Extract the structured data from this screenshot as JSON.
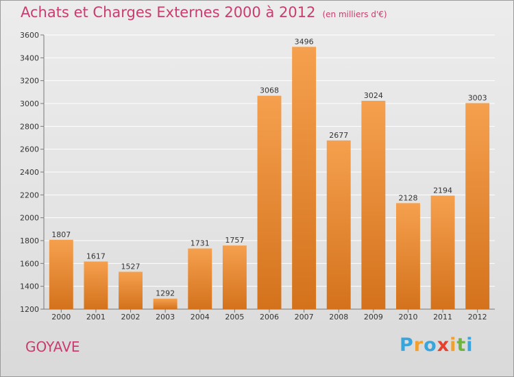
{
  "header": {
    "title": "Achats et Charges Externes 2000 à 2012",
    "subtitle": "(en milliers d'€)"
  },
  "footer": {
    "place": "GOYAVE",
    "logo_letters": [
      "P",
      "r",
      "o",
      "x",
      "i",
      "t",
      "i"
    ],
    "logo_colors": [
      "#3aa5dc",
      "#f0a030",
      "#3aa5dc",
      "#e8402d",
      "#f0a030",
      "#6fb43f",
      "#3aa5dc"
    ]
  },
  "chart_data": {
    "type": "bar",
    "title": "Achats et Charges Externes 2000 à 2012",
    "subtitle": "(en milliers d'€)",
    "categories": [
      "2000",
      "2001",
      "2002",
      "2003",
      "2004",
      "2005",
      "2006",
      "2007",
      "2008",
      "2009",
      "2010",
      "2011",
      "2012"
    ],
    "values": [
      1807,
      1617,
      1527,
      1292,
      1731,
      1757,
      3068,
      3496,
      2677,
      3024,
      2128,
      2194,
      3003
    ],
    "ylim": [
      1200,
      3600
    ],
    "yticks": [
      1200,
      1400,
      1600,
      1800,
      2000,
      2200,
      2400,
      2600,
      2800,
      3000,
      3200,
      3400,
      3600
    ],
    "grid": true,
    "bar_color": "#f5a04e",
    "bar_color_dark": "#d4721c",
    "title_color": "#c83c6f"
  }
}
